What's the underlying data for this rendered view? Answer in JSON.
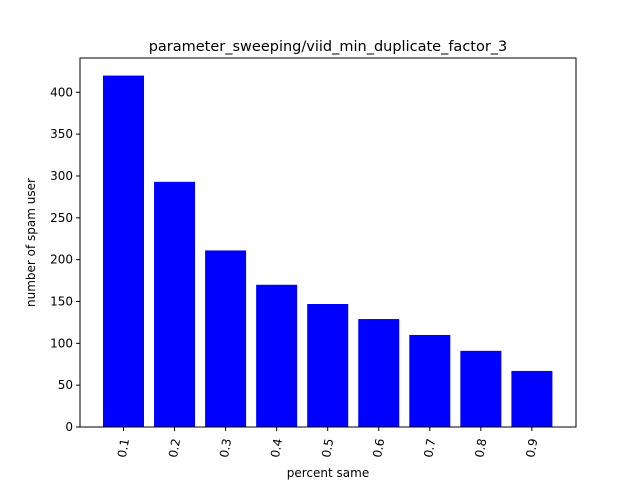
{
  "chart_data": {
    "type": "bar",
    "title": "parameter_sweeping/viid_min_duplicate_factor_3",
    "xlabel": "percent same",
    "ylabel": "number of spam user",
    "categories": [
      "0.1",
      "0.2",
      "0.3",
      "0.4",
      "0.5",
      "0.6",
      "0.7",
      "0.8",
      "0.9"
    ],
    "values": [
      420,
      293,
      211,
      170,
      147,
      129,
      110,
      91,
      67
    ],
    "ylim": [
      0,
      441
    ],
    "yticks": [
      0,
      50,
      100,
      150,
      200,
      250,
      300,
      350,
      400
    ],
    "ytick_labels": [
      "0",
      "50",
      "100",
      "150",
      "200",
      "250",
      "300",
      "350",
      "400"
    ],
    "x_tick_rotation": "rotated ~80 degrees",
    "bar_color": "#0000ff",
    "grid": false,
    "legend": "none"
  }
}
